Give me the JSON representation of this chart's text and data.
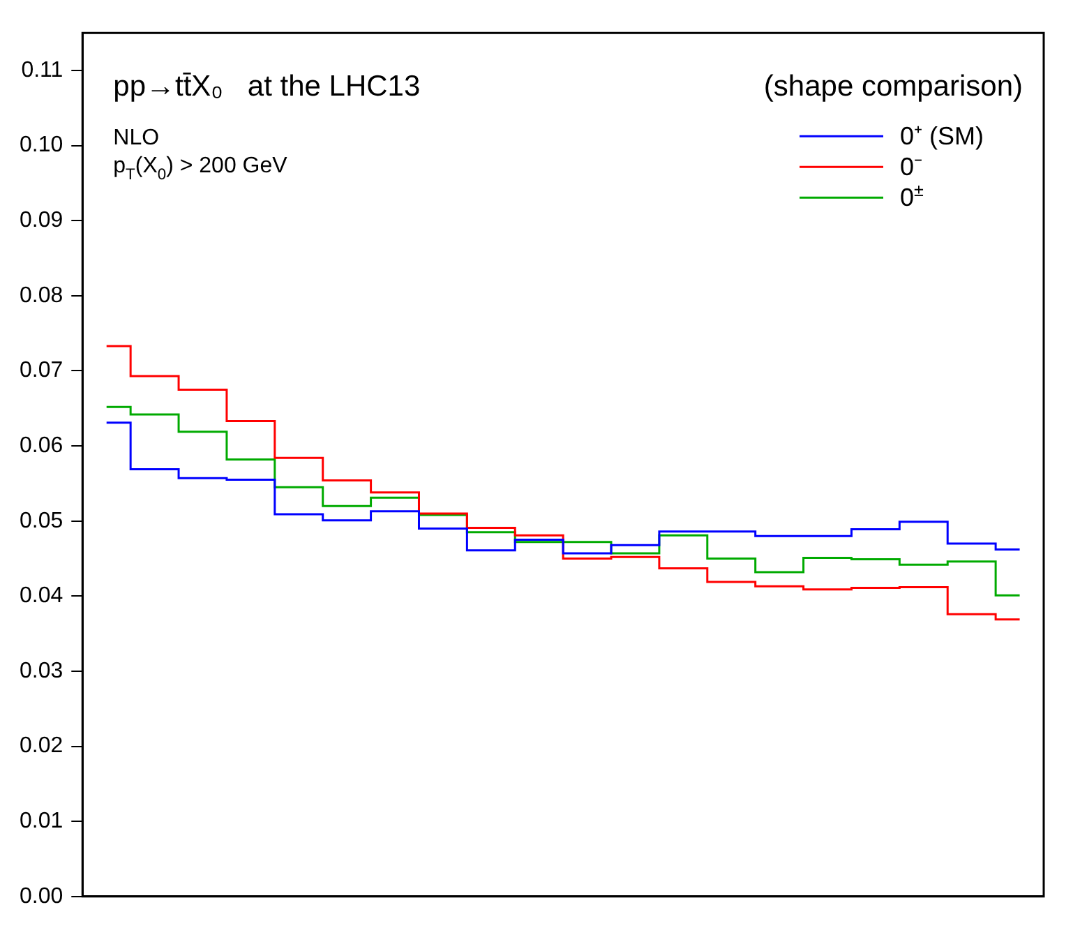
{
  "chart_data": {
    "type": "step",
    "title": "pp→tt̄X₀   at the LHC13",
    "subtitle": "(shape comparison)",
    "annotations": [
      "NLO",
      "p$_{T}$(X$_{0}$) > 200 GeV"
    ],
    "categories": [
      null,
      null,
      null,
      null,
      null,
      null,
      null,
      null,
      null,
      null,
      null,
      null,
      null,
      null,
      null,
      null,
      null,
      null,
      null,
      null
    ],
    "series": [
      {
        "name": "0⁺ (SM)",
        "color": "#0000ff",
        "values": [
          0.0631,
          0.0569,
          0.0557,
          0.0555,
          0.0509,
          0.0501,
          0.0513,
          0.049,
          0.0461,
          0.0475,
          0.0457,
          0.0468,
          0.0486,
          0.0486,
          0.048,
          0.048,
          0.0489,
          0.0499,
          0.047,
          0.0462
        ]
      },
      {
        "name": "0⁻",
        "color": "#ff0000",
        "values": [
          0.0733,
          0.0693,
          0.0675,
          0.0633,
          0.0584,
          0.0554,
          0.0538,
          0.051,
          0.0491,
          0.0481,
          0.045,
          0.0452,
          0.0437,
          0.0419,
          0.0413,
          0.0409,
          0.0411,
          0.0412,
          0.0376,
          0.0369
        ]
      },
      {
        "name": "0$^{±}$",
        "color": "#00aa00",
        "values": [
          0.0652,
          0.0642,
          0.0619,
          0.0582,
          0.0545,
          0.052,
          0.0531,
          0.0508,
          0.0485,
          0.0472,
          0.0472,
          0.0457,
          0.0481,
          0.045,
          0.0432,
          0.0451,
          0.0449,
          0.0442,
          0.0446,
          0.0401
        ]
      }
    ],
    "ylim": [
      0,
      0.115
    ],
    "yticks": [
      {
        "value": 0,
        "label": "0.00"
      },
      {
        "value": 0.01,
        "label": "0.01"
      },
      {
        "value": 0.02,
        "label": "0.02"
      },
      {
        "value": 0.03,
        "label": "0.03"
      },
      {
        "value": 0.04,
        "label": "0.04"
      },
      {
        "value": 0.05,
        "label": "0.05"
      },
      {
        "value": 0.06,
        "label": "0.06"
      },
      {
        "value": 0.07,
        "label": "0.07"
      },
      {
        "value": 0.08,
        "label": "0.08"
      },
      {
        "value": 0.09,
        "label": "0.09"
      },
      {
        "value": 0.1,
        "label": "0.10"
      },
      {
        "value": 0.11,
        "label": "0.11"
      }
    ],
    "tick_labels": "y",
    "grid": false,
    "legend": "top right",
    "marker": "none",
    "line_style": "solid"
  }
}
